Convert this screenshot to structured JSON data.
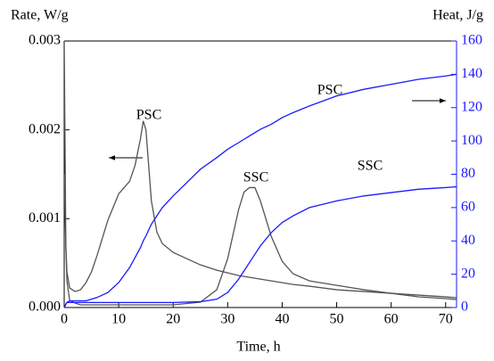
{
  "chart_data": {
    "type": "line",
    "y_label": "Rate, W/g",
    "y2_label": "Heat, J/g",
    "x_label": "Time, h",
    "x": [
      0,
      0.3,
      0.5,
      1,
      2,
      3,
      4,
      5,
      6,
      8,
      10,
      12,
      13,
      14,
      14.5,
      15,
      16,
      17,
      18,
      20,
      25,
      28,
      30,
      32,
      33,
      34,
      35,
      36,
      38,
      40,
      42,
      45,
      50,
      55,
      60,
      65,
      70,
      72
    ],
    "series": [
      {
        "name": "PSC",
        "color": "#555555",
        "values": [
          0.003,
          0.0007,
          0.0004,
          0.00022,
          0.00018,
          0.0002,
          0.00028,
          0.0004,
          0.00058,
          0.00098,
          0.00128,
          0.00142,
          0.0016,
          0.0019,
          0.0021,
          0.002,
          0.0012,
          0.00085,
          0.00072,
          0.00062,
          0.00048,
          0.00042,
          0.00039,
          0.00036,
          0.00035,
          0.00034,
          0.00033,
          0.00032,
          0.0003,
          0.00028,
          0.00026,
          0.00024,
          0.0002,
          0.00018,
          0.00016,
          0.00014,
          0.00012,
          0.00011
        ]
      },
      {
        "name": "SSC",
        "color": "#555555",
        "values": [
          0.0015,
          0.0007,
          0.0003,
          8e-05,
          5e-05,
          3e-05,
          3e-05,
          3e-05,
          3e-05,
          3e-05,
          3e-05,
          3e-05,
          3e-05,
          3e-05,
          3e-05,
          3e-05,
          3e-05,
          3e-05,
          3e-05,
          3e-05,
          6e-05,
          0.0002,
          0.00055,
          0.0011,
          0.0013,
          0.00135,
          0.00135,
          0.0012,
          0.0008,
          0.00052,
          0.00038,
          0.0003,
          0.00025,
          0.0002,
          0.00016,
          0.00012,
          0.0001,
          9e-05
        ]
      },
      {
        "name": "PSC",
        "color": "#1a1aff",
        "axis": "y2",
        "values": [
          0,
          2,
          3,
          4,
          4,
          4,
          4,
          5,
          6,
          9,
          15,
          24,
          30,
          36,
          40,
          43,
          50,
          55,
          60,
          67,
          83,
          90,
          95,
          99,
          101,
          103,
          105,
          107,
          110,
          114,
          117,
          121,
          127,
          131,
          134,
          137,
          139,
          140
        ]
      },
      {
        "name": "SSC",
        "color": "#1a1aff",
        "axis": "y2",
        "values": [
          0,
          2,
          3,
          3,
          3,
          3,
          3,
          3,
          3,
          3,
          3,
          3,
          3,
          3,
          3,
          3,
          3,
          3,
          3,
          3,
          3.5,
          5,
          9,
          17,
          22,
          27,
          32,
          37,
          45,
          51,
          55,
          60,
          64,
          67,
          69,
          71,
          72,
          72.5
        ]
      }
    ],
    "xlim": [
      0,
      72
    ],
    "xticks": [
      0,
      10,
      20,
      30,
      40,
      50,
      60,
      70
    ],
    "ylim": [
      0,
      0.003
    ],
    "yticks": [
      {
        "value": 0,
        "label": "0.000"
      },
      0.001,
      0.002,
      0.003
    ],
    "y2lim": [
      0,
      160
    ],
    "y2ticks": [
      0,
      20,
      40,
      60,
      80,
      100,
      120,
      140,
      160
    ],
    "y2_color": "#1a1aff"
  }
}
